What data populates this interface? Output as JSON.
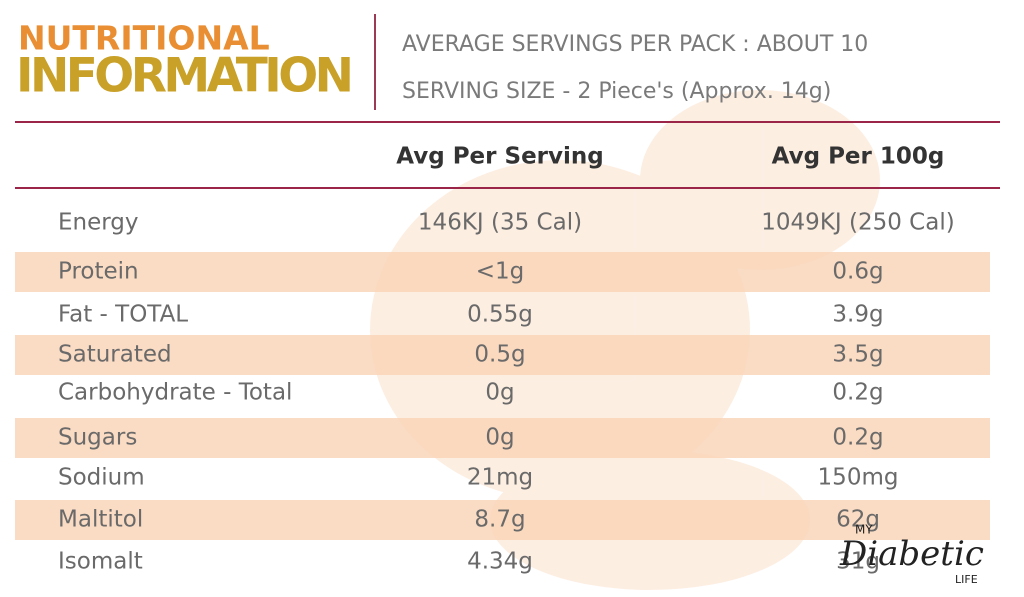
{
  "header": {
    "title_line1": "NUTRITIONAL",
    "title_line2": "INFORMATION",
    "servings_per_pack": "AVERAGE SERVINGS PER PACK : ABOUT 10",
    "serving_size": "SERVING SIZE - 2 Piece's (Approx. 14g)"
  },
  "table": {
    "columns": [
      "Avg Per Serving",
      "Avg Per 100g"
    ],
    "rows": [
      [
        "Energy",
        "146KJ (35 Cal)",
        "1049KJ (250 Cal)"
      ],
      [
        "Protein",
        "<1g",
        "0.6g"
      ],
      [
        "Fat - TOTAL",
        "0.55g",
        "3.9g"
      ],
      [
        "Saturated",
        "0.5g",
        "3.5g"
      ],
      [
        "Carbohydrate - Total",
        "0g",
        "0.2g"
      ],
      [
        "Sugars",
        "0g",
        "0.2g"
      ],
      [
        "Sodium",
        "21mg",
        "150mg"
      ],
      [
        "Maltitol",
        "8.7g",
        "62g"
      ],
      [
        "Isomalt",
        "4.34g",
        "31g"
      ]
    ]
  },
  "watermark": {
    "top": "MY",
    "main": "Diabetic",
    "bottom": "LIFE"
  }
}
